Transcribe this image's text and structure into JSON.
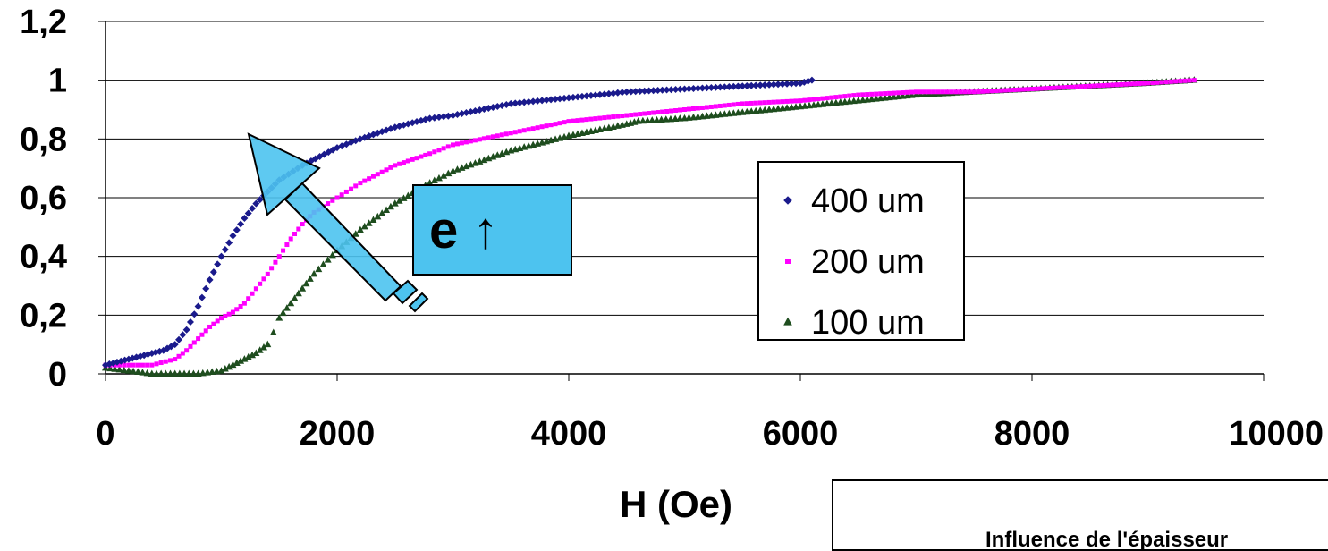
{
  "chart_data": {
    "type": "scatter",
    "xlabel": "H (Oe)",
    "ylabel": "",
    "xlim": [
      0,
      10000
    ],
    "ylim": [
      0,
      1.2
    ],
    "x_ticks": [
      "0",
      "2000",
      "4000",
      "6000",
      "8000",
      "10000"
    ],
    "y_ticks": [
      "0",
      "0,2",
      "0,4",
      "0,6",
      "0,8",
      "1",
      "1,2"
    ],
    "grid": "horizontal",
    "legend_position": "right",
    "series": [
      {
        "name": "400 um",
        "color": "#1a1a8c",
        "marker": "diamond",
        "points": [
          [
            0,
            0.03
          ],
          [
            100,
            0.04
          ],
          [
            200,
            0.05
          ],
          [
            300,
            0.06
          ],
          [
            400,
            0.07
          ],
          [
            500,
            0.08
          ],
          [
            600,
            0.1
          ],
          [
            700,
            0.15
          ],
          [
            800,
            0.23
          ],
          [
            900,
            0.32
          ],
          [
            1000,
            0.4
          ],
          [
            1100,
            0.47
          ],
          [
            1200,
            0.53
          ],
          [
            1300,
            0.58
          ],
          [
            1400,
            0.62
          ],
          [
            1500,
            0.66
          ],
          [
            1700,
            0.71
          ],
          [
            2000,
            0.77
          ],
          [
            2200,
            0.8
          ],
          [
            2500,
            0.84
          ],
          [
            2800,
            0.87
          ],
          [
            3000,
            0.88
          ],
          [
            3500,
            0.92
          ],
          [
            4000,
            0.94
          ],
          [
            4500,
            0.96
          ],
          [
            5000,
            0.97
          ],
          [
            5500,
            0.98
          ],
          [
            6000,
            0.99
          ],
          [
            6100,
            1.0
          ]
        ]
      },
      {
        "name": "200 um",
        "color": "#ff00ff",
        "marker": "square",
        "points": [
          [
            0,
            0.03
          ],
          [
            200,
            0.03
          ],
          [
            400,
            0.03
          ],
          [
            600,
            0.05
          ],
          [
            700,
            0.08
          ],
          [
            800,
            0.12
          ],
          [
            900,
            0.16
          ],
          [
            1000,
            0.19
          ],
          [
            1100,
            0.21
          ],
          [
            1200,
            0.24
          ],
          [
            1300,
            0.29
          ],
          [
            1400,
            0.34
          ],
          [
            1500,
            0.4
          ],
          [
            1600,
            0.46
          ],
          [
            1700,
            0.51
          ],
          [
            1800,
            0.55
          ],
          [
            2000,
            0.6
          ],
          [
            2200,
            0.65
          ],
          [
            2500,
            0.71
          ],
          [
            2800,
            0.75
          ],
          [
            3000,
            0.78
          ],
          [
            3500,
            0.82
          ],
          [
            4000,
            0.86
          ],
          [
            4500,
            0.88
          ],
          [
            5000,
            0.9
          ],
          [
            5500,
            0.92
          ],
          [
            6000,
            0.93
          ],
          [
            6500,
            0.95
          ],
          [
            7000,
            0.96
          ],
          [
            7500,
            0.96
          ],
          [
            8000,
            0.97
          ],
          [
            8500,
            0.98
          ],
          [
            9000,
            0.99
          ],
          [
            9400,
            1.0
          ]
        ]
      },
      {
        "name": "100 um",
        "color": "#1e4d1e",
        "marker": "triangle",
        "points": [
          [
            0,
            0.02
          ],
          [
            200,
            0.01
          ],
          [
            400,
            0.0
          ],
          [
            600,
            0.0
          ],
          [
            800,
            0.0
          ],
          [
            1000,
            0.01
          ],
          [
            1100,
            0.03
          ],
          [
            1200,
            0.05
          ],
          [
            1300,
            0.07
          ],
          [
            1400,
            0.1
          ],
          [
            1450,
            0.14
          ],
          [
            1500,
            0.19
          ],
          [
            1600,
            0.24
          ],
          [
            1700,
            0.29
          ],
          [
            1800,
            0.34
          ],
          [
            2000,
            0.42
          ],
          [
            2200,
            0.49
          ],
          [
            2500,
            0.58
          ],
          [
            2800,
            0.65
          ],
          [
            3000,
            0.69
          ],
          [
            3500,
            0.76
          ],
          [
            4000,
            0.81
          ],
          [
            4500,
            0.85
          ],
          [
            4600,
            0.86
          ],
          [
            5000,
            0.87
          ],
          [
            5500,
            0.89
          ],
          [
            6000,
            0.91
          ],
          [
            6500,
            0.93
          ],
          [
            7000,
            0.95
          ],
          [
            7500,
            0.96
          ],
          [
            8000,
            0.97
          ],
          [
            8500,
            0.98
          ],
          [
            9000,
            0.99
          ],
          [
            9400,
            1.0
          ]
        ]
      }
    ],
    "annotation": "e ↑"
  },
  "subtitle": "Influence de l'épaisseur"
}
